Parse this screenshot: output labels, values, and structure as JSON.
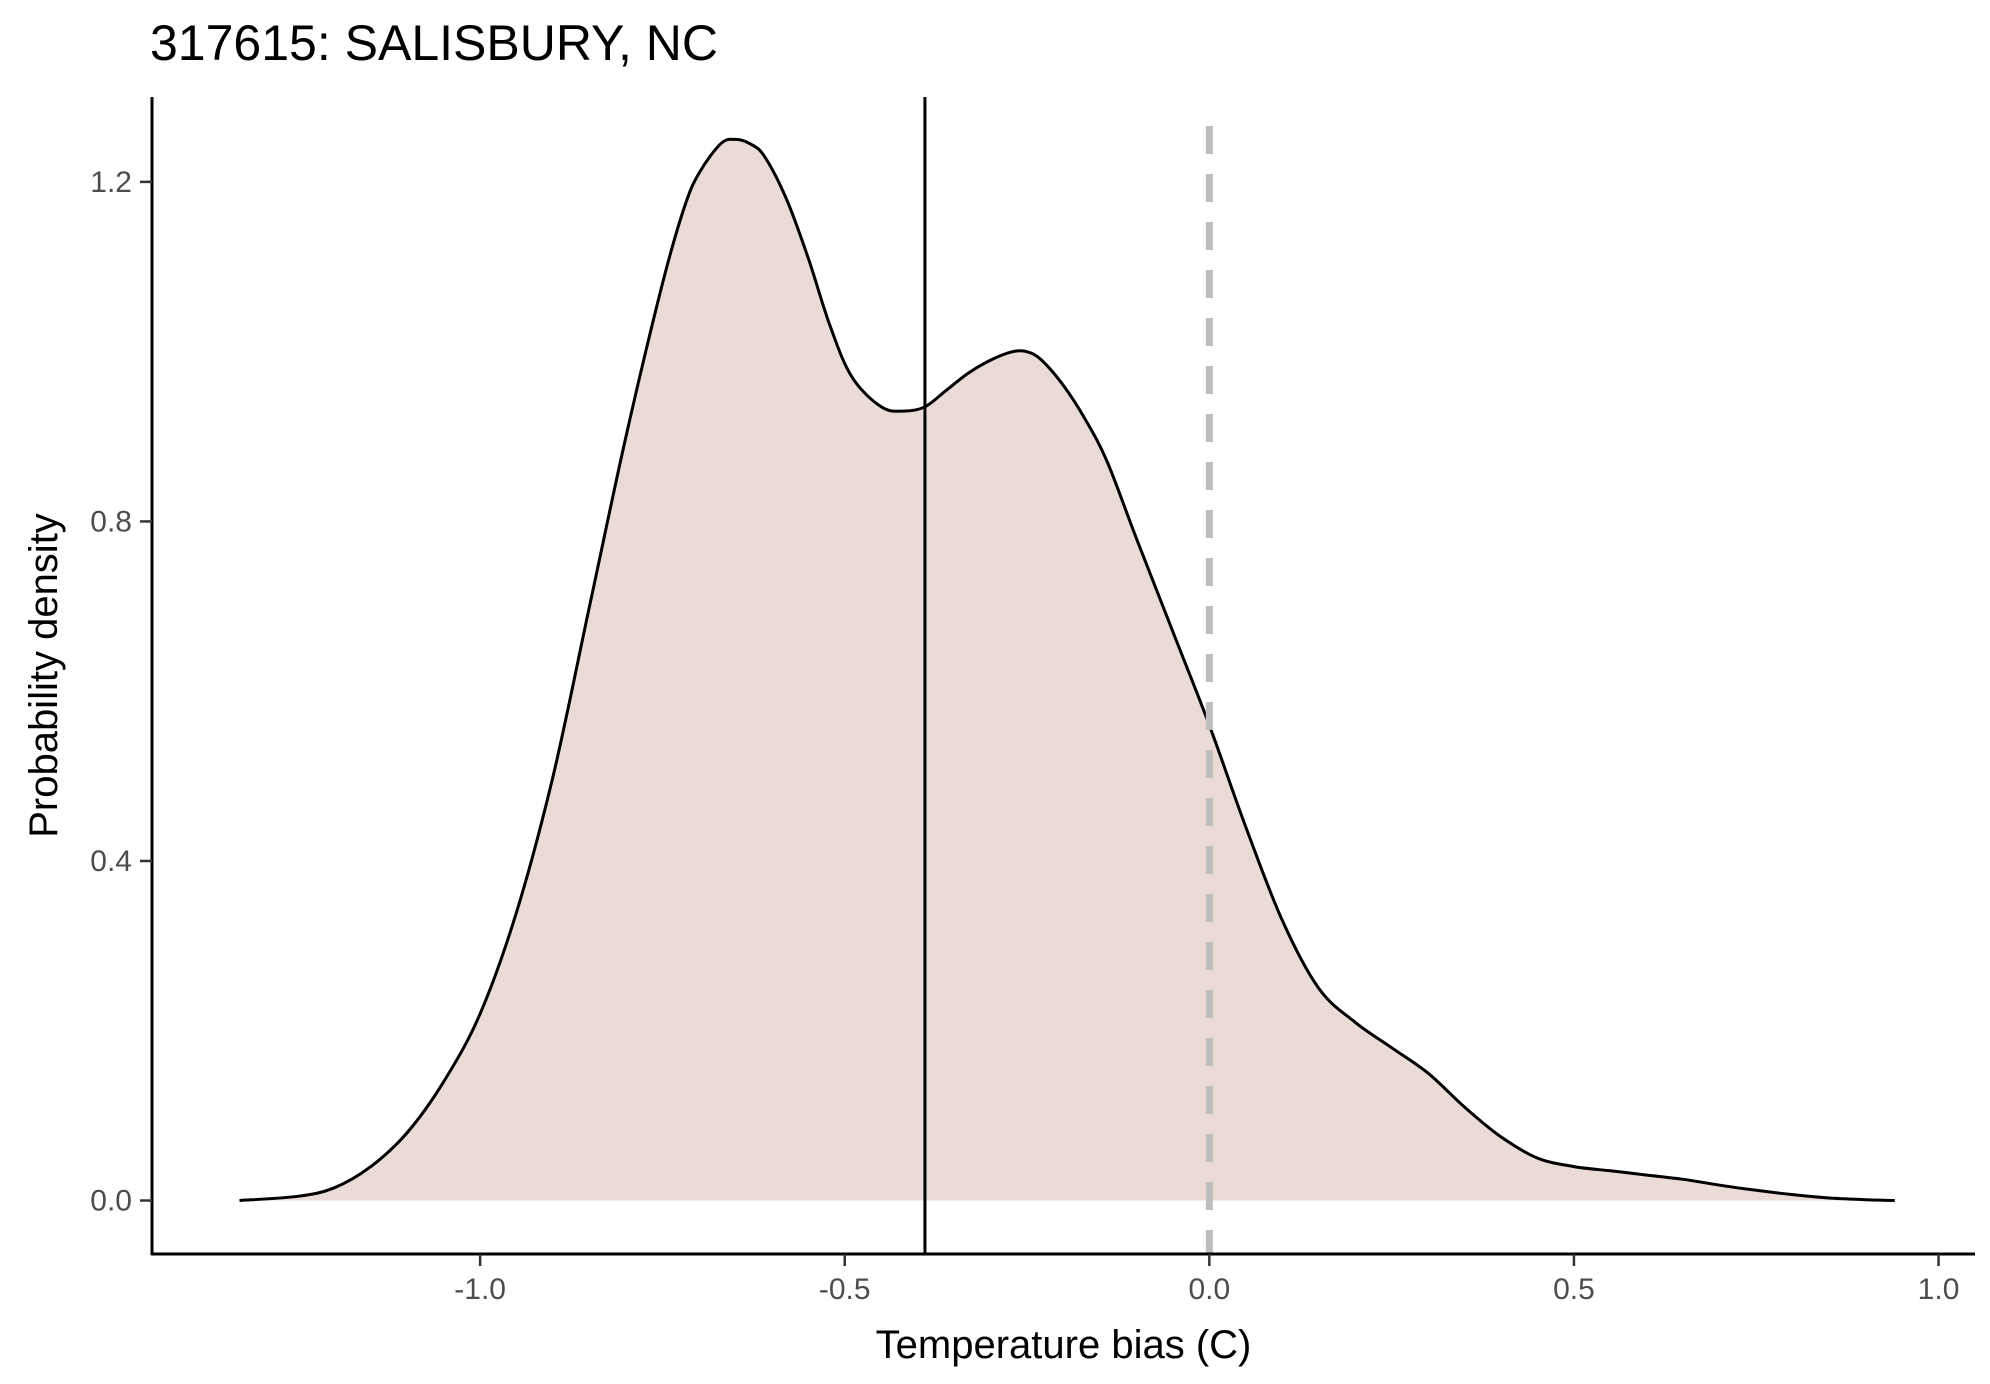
{
  "chart_data": {
    "type": "area",
    "title": "317615: SALISBURY, NC",
    "xlabel": "Temperature bias (C)",
    "ylabel": "Probability density",
    "xlim": [
      -1.45,
      1.05
    ],
    "ylim": [
      -0.063,
      1.3
    ],
    "x_ticks": [
      -1.0,
      -0.5,
      0.0,
      0.5,
      1.0
    ],
    "x_tick_labels": [
      "-1.0",
      "-0.5",
      "0.0",
      "0.5",
      "1.0"
    ],
    "y_ticks": [
      0.0,
      0.4,
      0.8,
      1.2
    ],
    "y_tick_labels": [
      "0.0",
      "0.4",
      "0.8",
      "1.2"
    ],
    "fill_color": "#eadbd7",
    "line_color": "#000000",
    "grid": false,
    "mean_line": {
      "x": -0.39,
      "style": "solid",
      "color": "#000000"
    },
    "reference_line": {
      "x": 0.0,
      "style": "dashed",
      "color": "#bebebe"
    },
    "series": [
      {
        "x": [
          -1.33,
          -1.25,
          -1.2,
          -1.15,
          -1.1,
          -1.05,
          -1.0,
          -0.95,
          -0.9,
          -0.85,
          -0.8,
          -0.75,
          -0.72,
          -0.7,
          -0.67,
          -0.65,
          -0.63,
          -0.61,
          -0.58,
          -0.55,
          -0.52,
          -0.49,
          -0.45,
          -0.42,
          -0.39,
          -0.36,
          -0.33,
          -0.3,
          -0.27,
          -0.25,
          -0.23,
          -0.2,
          -0.17,
          -0.14,
          -0.1,
          -0.05,
          0.0,
          0.05,
          0.1,
          0.15,
          0.2,
          0.25,
          0.3,
          0.35,
          0.4,
          0.45,
          0.5,
          0.55,
          0.6,
          0.65,
          0.7,
          0.75,
          0.8,
          0.85,
          0.9,
          0.94
        ],
        "y": [
          0.0,
          0.005,
          0.015,
          0.04,
          0.08,
          0.14,
          0.22,
          0.34,
          0.5,
          0.7,
          0.9,
          1.08,
          1.17,
          1.21,
          1.245,
          1.25,
          1.245,
          1.23,
          1.18,
          1.11,
          1.03,
          0.97,
          0.935,
          0.93,
          0.935,
          0.955,
          0.975,
          0.99,
          1.0,
          1.0,
          0.99,
          0.96,
          0.92,
          0.87,
          0.78,
          0.67,
          0.56,
          0.44,
          0.33,
          0.25,
          0.21,
          0.18,
          0.15,
          0.11,
          0.075,
          0.05,
          0.04,
          0.035,
          0.03,
          0.025,
          0.018,
          0.012,
          0.007,
          0.003,
          0.001,
          0.0
        ]
      }
    ]
  }
}
